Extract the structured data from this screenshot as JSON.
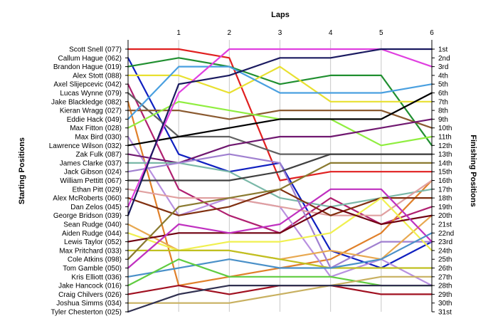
{
  "chart_data": {
    "type": "line",
    "title": "Laps",
    "ylabel_left": "Starting Positions",
    "ylabel_right": "Finishing Positions",
    "x": [
      0,
      1,
      2,
      3,
      4,
      5,
      6
    ],
    "x_tick_labels": [
      "1",
      "2",
      "3",
      "4",
      "5",
      "6"
    ],
    "y_inverted": true,
    "grid": true,
    "driver_labels": [
      "Scott Snell (077)",
      "Callum Hague (062)",
      "Brandon Hague (019)",
      "Alex Stott (088)",
      "Axel Slijepcevic (042)",
      "Lucas Wynne (079)",
      "Jake Blackledge (082)",
      "Kieran Wragg (027)",
      "Eddie Hack (049)",
      "Max Fitton (028)",
      "Max Bird (030)",
      "Lawrence Wilson (032)",
      "Zak Fulk (087)",
      "James Clarke (037)",
      "Jack Gibson (024)",
      "William Pettitt (067)",
      "Ethan Pitt (029)",
      "Alex McRoberts (060)",
      "Dan Zelos (045)",
      "George Bridson (039)",
      "Sean Rudge (040)",
      "Aiden Rudge (044)",
      "Lewis Taylor (052)",
      "Max Pritchard (033)",
      "Cole Atkins (098)",
      "Tom Gamble (050)",
      "Kris Elliott (036)",
      "Jake Hancock (016)",
      "Craig Chilvers (026)",
      "Joshua Simms (034)",
      "Tyler Chesterton (025)"
    ],
    "finish_labels": [
      "1st",
      "2nd",
      "3rd",
      "4th",
      "5th",
      "6th",
      "7th",
      "8th",
      "9th",
      "10th",
      "11th",
      "12th",
      "13th",
      "14th",
      "15th",
      "16th",
      "17th",
      "18th",
      "19th",
      "20th",
      "21st",
      "22nd",
      "23rd",
      "24th",
      "25th",
      "26th",
      "27th",
      "28th",
      "29th",
      "30th",
      "31st"
    ],
    "series": [
      {
        "color": "#e02020",
        "values": [
          1,
          1,
          2,
          16,
          15,
          15,
          15
        ]
      },
      {
        "color": "#1020c0",
        "values": [
          2,
          13,
          15,
          14,
          24,
          26,
          23
        ]
      },
      {
        "color": "#208f30",
        "values": [
          3,
          2,
          3,
          5,
          4,
          4,
          12
        ]
      },
      {
        "color": "#e8e030",
        "values": [
          4,
          4,
          6,
          3,
          7,
          7,
          7
        ]
      },
      {
        "color": "#b02070",
        "values": [
          5,
          17,
          20,
          22,
          18,
          21,
          19
        ]
      },
      {
        "color": "#606060",
        "values": [
          6,
          11,
          11,
          13,
          13,
          13,
          13
        ]
      },
      {
        "color": "#e0802a",
        "values": [
          7,
          28,
          27,
          26,
          25,
          22,
          16
        ]
      },
      {
        "color": "#8a5a30",
        "values": [
          8,
          8,
          9,
          8,
          8,
          8,
          10
        ]
      },
      {
        "color": "#4aa0e0",
        "values": [
          9,
          3,
          3,
          6,
          6,
          6,
          5
        ]
      },
      {
        "color": "#90ee40",
        "values": [
          10,
          7,
          8,
          9,
          9,
          12,
          11
        ]
      },
      {
        "color": "#b890e0",
        "values": [
          11,
          20,
          18,
          19,
          27,
          25,
          28
        ]
      },
      {
        "color": "#000000",
        "values": [
          12,
          11,
          10,
          9,
          9,
          9,
          6
        ]
      },
      {
        "color": "#701870",
        "values": [
          13,
          14,
          12,
          11,
          11,
          10,
          9
        ]
      },
      {
        "color": "#7ab8a8",
        "values": [
          14,
          14,
          15,
          18,
          19,
          18,
          17
        ]
      },
      {
        "color": "#a080d0",
        "values": [
          15,
          14,
          13,
          14,
          26,
          23,
          23
        ]
      },
      {
        "color": "#404040",
        "values": [
          16,
          16,
          16,
          15,
          13,
          13,
          13
        ]
      },
      {
        "color": "#e0a0a0",
        "values": [
          17,
          18,
          18,
          19,
          20,
          20,
          16
        ]
      },
      {
        "color": "#803010",
        "values": [
          18,
          20,
          19,
          17,
          20,
          18,
          18
        ]
      },
      {
        "color": "#e040e0",
        "values": [
          19,
          6,
          1,
          1,
          1,
          1,
          3
        ]
      },
      {
        "color": "#1a1a60",
        "values": [
          20,
          5,
          4,
          2,
          2,
          1,
          1
        ]
      },
      {
        "color": "#e8a850",
        "values": [
          21,
          24,
          24,
          25,
          24,
          25,
          20
        ]
      },
      {
        "color": "#f0f050",
        "values": [
          22,
          24,
          23,
          23,
          22,
          18,
          24
        ]
      },
      {
        "color": "#700010",
        "values": [
          23,
          22,
          22,
          22,
          19,
          21,
          20
        ]
      },
      {
        "color": "#c0c020",
        "values": [
          24,
          24,
          24,
          25,
          26,
          26,
          26
        ]
      },
      {
        "color": "#8a7a30",
        "values": [
          25,
          19,
          18,
          17,
          14,
          14,
          14
        ]
      },
      {
        "color": "#c030c0",
        "values": [
          26,
          21,
          22,
          21,
          17,
          17,
          23
        ]
      },
      {
        "color": "#4a90c8",
        "values": [
          27,
          26,
          25,
          26,
          26,
          25,
          22
        ]
      },
      {
        "color": "#60cc40",
        "values": [
          28,
          25,
          27,
          27,
          27,
          28,
          28
        ]
      },
      {
        "color": "#a01020",
        "values": [
          29,
          28,
          29,
          28,
          28,
          29,
          29
        ]
      },
      {
        "color": "#c8b060",
        "values": [
          30,
          30,
          30,
          29,
          28,
          27,
          27
        ]
      },
      {
        "color": "#303050",
        "values": [
          31,
          29,
          28,
          28,
          28,
          28,
          28
        ]
      }
    ]
  }
}
